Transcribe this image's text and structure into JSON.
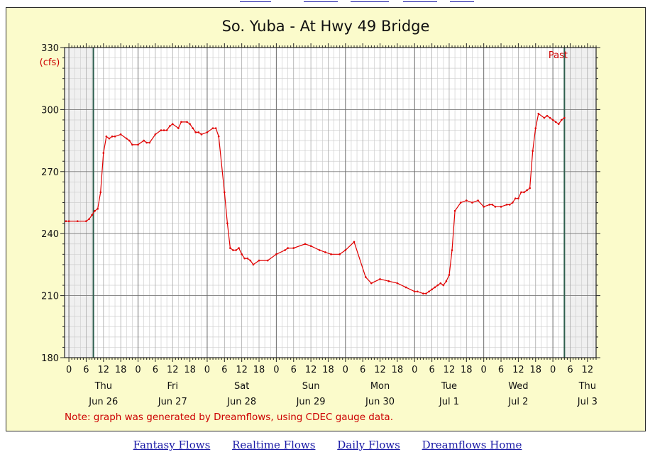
{
  "footer_links": [
    {
      "label": "Fantasy Flows"
    },
    {
      "label": "Realtime Flows"
    },
    {
      "label": "Daily Flows"
    },
    {
      "label": "Dreamflows Home"
    }
  ],
  "colors": {
    "line": "#e00000",
    "panel": "#fbfbcb",
    "grid_minor": "#cfcfcf",
    "grid_major": "#7a7a7a",
    "shade": "#f0f0f0",
    "marker_line": "#2e5e4e",
    "note": "#cc0000"
  },
  "chart_data": {
    "type": "line",
    "title": "So. Yuba - At Hwy 49 Bridge",
    "ylabel": "(cfs)",
    "ylim": [
      180,
      330
    ],
    "yticks": [
      180,
      210,
      240,
      270,
      300,
      330
    ],
    "x_unit": "hours since Jun 26 00:00",
    "xlim": [
      -1.5,
      183
    ],
    "hour_ticks": [
      "0",
      "6",
      "12",
      "18",
      "0",
      "6",
      "12",
      "18",
      "0",
      "6",
      "12",
      "18",
      "0",
      "6",
      "12",
      "18",
      "0",
      "6",
      "12",
      "18",
      "0",
      "6",
      "12",
      "18",
      "0",
      "6",
      "12",
      "18",
      "0",
      "6",
      "12"
    ],
    "days": [
      {
        "dow": "Thu",
        "date": "Jun 26"
      },
      {
        "dow": "Fri",
        "date": "Jun 27"
      },
      {
        "dow": "Sat",
        "date": "Jun 28"
      },
      {
        "dow": "Sun",
        "date": "Jun 29"
      },
      {
        "dow": "Mon",
        "date": "Jun 30"
      },
      {
        "dow": "Tue",
        "date": "Jul 1"
      },
      {
        "dow": "Wed",
        "date": "Jul 2"
      },
      {
        "dow": "Thu",
        "date": "Jul 3"
      }
    ],
    "past_label": "Past",
    "shaded_ranges": [
      [
        -1.5,
        8.5
      ],
      [
        172,
        183
      ]
    ],
    "marker_lines": [
      8.5,
      172
    ],
    "grid": true,
    "note": "Note: graph was generated by Dreamflows, using CDEC gauge data.",
    "series": [
      {
        "x": [
          -1,
          0,
          3,
          6,
          7,
          8,
          9,
          10,
          11,
          12,
          13,
          14,
          15,
          16,
          18,
          20,
          21,
          22,
          24,
          26,
          27,
          28,
          30,
          32,
          33,
          34,
          35,
          36,
          38,
          39,
          41,
          42,
          43,
          44,
          45,
          46,
          48,
          50,
          51,
          52,
          54,
          55,
          56,
          57,
          58,
          59,
          60,
          61,
          62,
          63,
          64,
          66,
          69,
          72,
          75,
          76,
          78,
          82,
          84,
          87,
          89,
          91,
          94,
          96,
          99,
          103,
          105,
          108,
          111,
          114,
          117,
          120,
          121,
          123,
          124,
          125,
          126,
          127,
          128,
          129,
          130,
          131,
          132,
          133,
          134,
          136,
          138,
          140,
          142,
          144,
          146,
          147,
          148,
          150,
          152,
          153,
          154,
          155,
          156,
          157,
          158,
          159,
          160,
          161,
          162,
          163,
          165,
          166,
          167,
          168,
          169,
          170,
          171,
          172
        ],
        "y": [
          246,
          246,
          246,
          246,
          247,
          249,
          251,
          252,
          260,
          279,
          287,
          286,
          287,
          287,
          288,
          286,
          285,
          283,
          283,
          285,
          284,
          284,
          288,
          290,
          290,
          290,
          292,
          293,
          291,
          294,
          294,
          293,
          291,
          289,
          289,
          288,
          289,
          291,
          291,
          287,
          260,
          245,
          233,
          232,
          232,
          233,
          230,
          228,
          228,
          227,
          225,
          227,
          227,
          230,
          232,
          233,
          233,
          235,
          234,
          232,
          231,
          230,
          230,
          232,
          236,
          219,
          216,
          218,
          217,
          216,
          214,
          212,
          212,
          211,
          211,
          212,
          213,
          214,
          215,
          216,
          215,
          217,
          220,
          232,
          251,
          255,
          256,
          255,
          256,
          253,
          254,
          254,
          253,
          253,
          254,
          254,
          255,
          257,
          257,
          260,
          260,
          261,
          262,
          280,
          291,
          298,
          296,
          297,
          296,
          295,
          294,
          293,
          295,
          296
        ]
      }
    ]
  }
}
